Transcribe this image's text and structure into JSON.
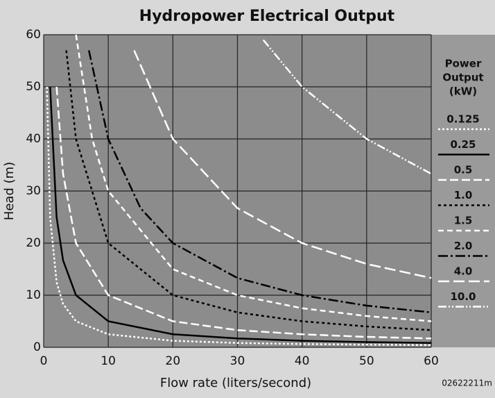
{
  "chart_data": {
    "type": "line",
    "title": "Hydropower Electrical Output",
    "xlabel": "Flow rate (liters/second)",
    "ylabel": "Head (m)",
    "legend_title": [
      "Power",
      "Output",
      "(kW)"
    ],
    "annotation": "02622211m",
    "xlim": [
      0,
      60
    ],
    "ylim": [
      0,
      60
    ],
    "xticks": [
      0,
      10,
      20,
      30,
      40,
      50,
      60
    ],
    "yticks": [
      0,
      10,
      20,
      30,
      40,
      50,
      60
    ],
    "grid": true,
    "legend": "right",
    "series": [
      {
        "name": "0.125",
        "color": "#ffffff",
        "dash": "3 3",
        "x": [
          0.5,
          1,
          2,
          3,
          5,
          10,
          20,
          30,
          40,
          50,
          60
        ],
        "values": [
          50,
          25,
          12.5,
          8.33,
          5,
          2.5,
          1.25,
          0.83,
          0.63,
          0.5,
          0.42
        ]
      },
      {
        "name": "0.25",
        "color": "#000000",
        "dash": "",
        "x": [
          1,
          2,
          3,
          5,
          10,
          20,
          30,
          40,
          50,
          60
        ],
        "values": [
          50,
          25,
          16.7,
          10,
          5,
          2.5,
          1.7,
          1.25,
          1,
          0.83
        ]
      },
      {
        "name": "0.5",
        "color": "#ffffff",
        "dash": "12 5",
        "x": [
          2,
          3,
          5,
          10,
          20,
          30,
          40,
          50,
          60
        ],
        "values": [
          50,
          33.3,
          20,
          10,
          5,
          3.3,
          2.5,
          2,
          1.7
        ]
      },
      {
        "name": "1.0",
        "color": "#000000",
        "dash": "4 4",
        "x": [
          3.5,
          5,
          10,
          20,
          30,
          40,
          50,
          60
        ],
        "values": [
          57,
          40,
          20,
          10,
          6.7,
          5,
          4,
          3.3
        ]
      },
      {
        "name": "1.5",
        "color": "#ffffff",
        "dash": "8 5",
        "x": [
          5,
          7.5,
          10,
          20,
          30,
          40,
          50,
          60
        ],
        "values": [
          60,
          40,
          30,
          15,
          10,
          7.5,
          6,
          5
        ]
      },
      {
        "name": "2.0",
        "color": "#000000",
        "dash": "14 4 3 4",
        "x": [
          7,
          10,
          15,
          20,
          30,
          40,
          50,
          60
        ],
        "values": [
          57,
          40,
          26.7,
          20,
          13.3,
          10,
          8,
          6.7
        ]
      },
      {
        "name": "4.0",
        "color": "#ffffff",
        "dash": "16 6",
        "x": [
          14,
          20,
          30,
          40,
          50,
          60
        ],
        "values": [
          57,
          40,
          26.7,
          20,
          16,
          13.3
        ]
      },
      {
        "name": "10.0",
        "color": "#ffffff",
        "dash": "12 3 2 3 2 3",
        "x": [
          34,
          40,
          50,
          60
        ],
        "values": [
          59,
          50,
          40,
          33.3
        ]
      }
    ]
  }
}
